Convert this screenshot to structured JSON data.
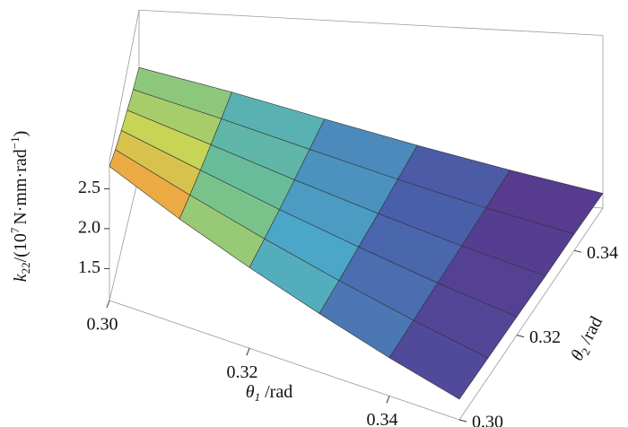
{
  "chart_data": {
    "type": "surface3d",
    "zlabel": [
      "k",
      "22",
      "/(10",
      "7",
      "N·mm·rad",
      "−1",
      ")"
    ],
    "xlabel": [
      "θ",
      "1",
      " /rad"
    ],
    "ylabel": [
      "θ",
      "2",
      " /rad"
    ],
    "x": [
      0.3,
      0.31,
      0.32,
      0.33,
      0.34,
      0.35
    ],
    "y": [
      0.3,
      0.31,
      0.32,
      0.33,
      0.34,
      0.35
    ],
    "z": [
      [
        2.78,
        2.62,
        2.5,
        2.4,
        2.31,
        2.24
      ],
      [
        2.4,
        2.3,
        2.22,
        2.15,
        2.09,
        2.04
      ],
      [
        2.08,
        2.01,
        1.95,
        1.9,
        1.86,
        1.82
      ],
      [
        1.8,
        1.75,
        1.71,
        1.67,
        1.64,
        1.61
      ],
      [
        1.55,
        1.52,
        1.49,
        1.46,
        1.44,
        1.42
      ],
      [
        1.34,
        1.32,
        1.3,
        1.28,
        1.27,
        1.25
      ]
    ],
    "xlim": [
      0.3,
      0.35
    ],
    "ylim": [
      0.3,
      0.35
    ],
    "zlim": [
      1.1,
      2.85
    ],
    "xticks": [
      {
        "value": 0.3,
        "label": "0.30"
      },
      0.32,
      0.34
    ],
    "yticks": [
      {
        "value": 0.3,
        "label": "0.30"
      },
      0.32,
      0.34
    ],
    "zticks": [
      1.5,
      {
        "value": 2.0,
        "label": "2.0"
      },
      2.5
    ]
  }
}
